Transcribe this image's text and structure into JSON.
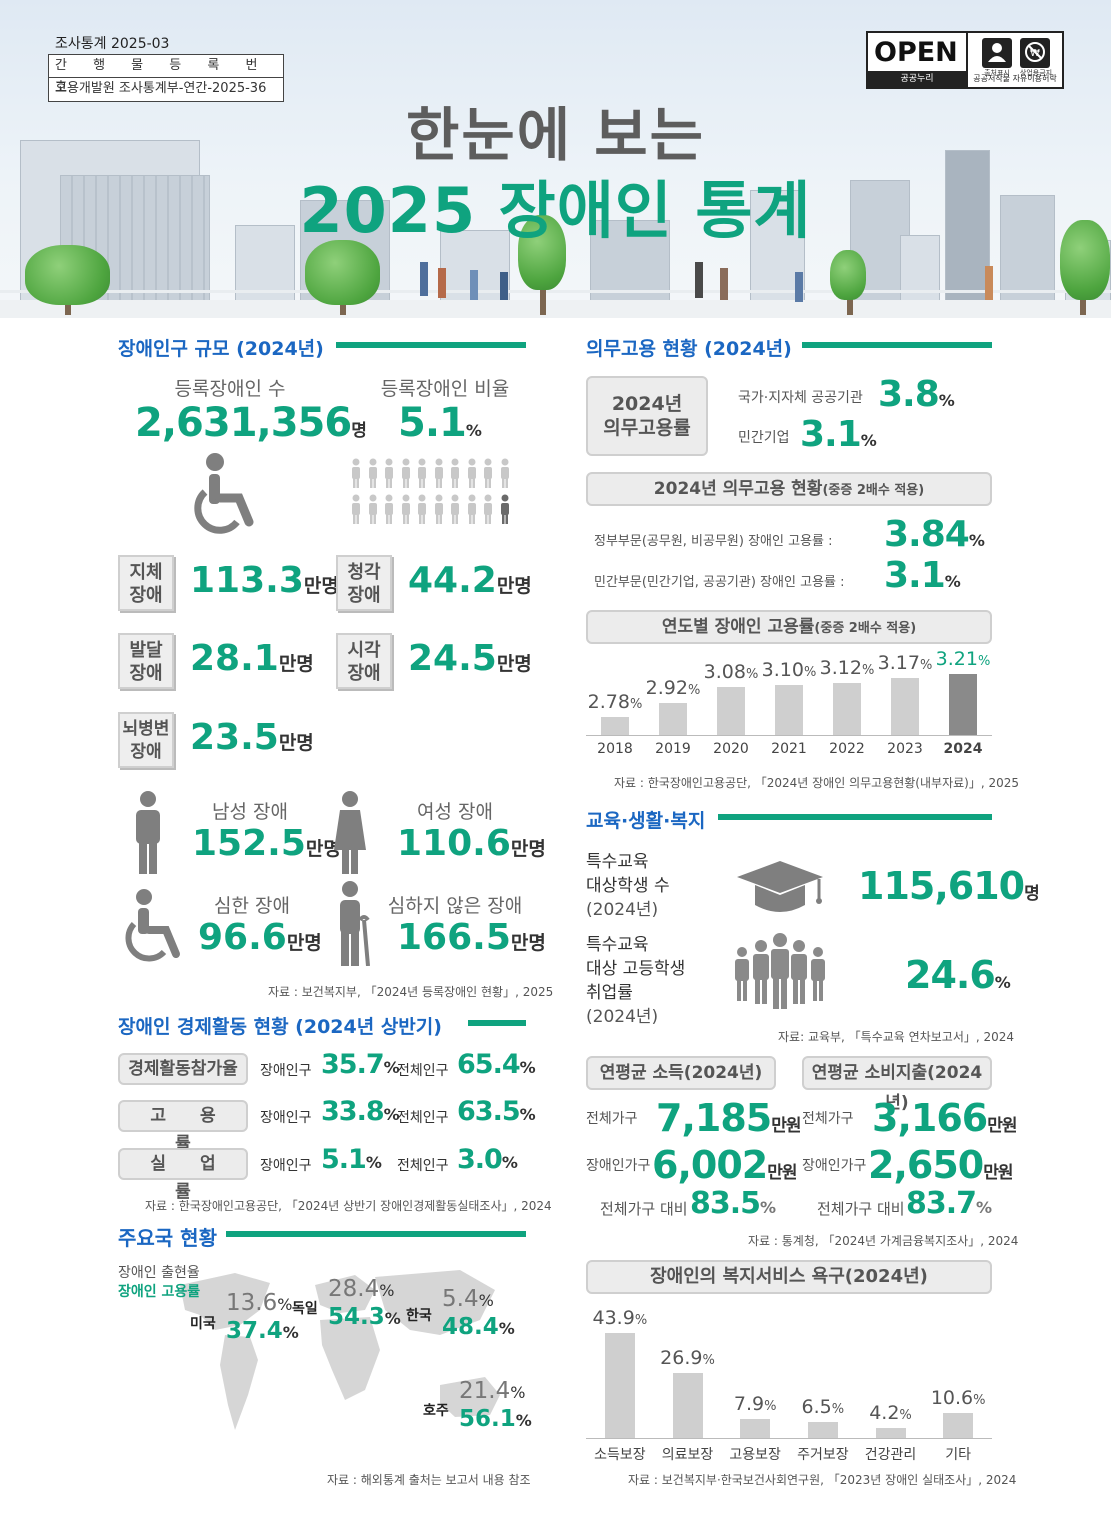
{
  "header": {
    "report_series": "조사통계 2025-03",
    "reg_label": "간 행 물 등 록 번 호",
    "reg_number": "고용개발원 조사통계부-연간-2025-36",
    "open_badge": {
      "word": "OPEN",
      "sub": "공공누리",
      "icon1": "출처표시",
      "icon2": "상업용금지",
      "icon_label": "공공저작물 자유이용허락"
    },
    "title_line1": "한눈에 보는",
    "title_line2": "2025 장애인 통계"
  },
  "population": {
    "title": "장애인구 규모 (2024년)",
    "registered_label": "등록장애인 수",
    "registered_value": "2,631,356",
    "registered_unit": "명",
    "ratio_label": "등록장애인 비율",
    "ratio_value": "5.1",
    "ratio_unit": "%",
    "categories": [
      {
        "name_line1": "지체",
        "name_line2": "장애",
        "value": "113.3",
        "unit": "만명"
      },
      {
        "name_line1": "청각",
        "name_line2": "장애",
        "value": "44.2",
        "unit": "만명"
      },
      {
        "name_line1": "발달",
        "name_line2": "장애",
        "value": "28.1",
        "unit": "만명"
      },
      {
        "name_line1": "시각",
        "name_line2": "장애",
        "value": "24.5",
        "unit": "만명"
      },
      {
        "name_line1": "뇌병변",
        "name_line2": "장애",
        "value": "23.5",
        "unit": "만명"
      }
    ],
    "male_label": "남성 장애",
    "male_value": "152.5",
    "male_unit": "만명",
    "female_label": "여성 장애",
    "female_value": "110.6",
    "female_unit": "만명",
    "severe_label": "심한 장애",
    "severe_value": "96.6",
    "severe_unit": "만명",
    "mild_label": "심하지 않은 장애",
    "mild_value": "166.5",
    "mild_unit": "만명",
    "source": "자료 : 보건복지부, 「2024년 등록장애인 현황」, 2025"
  },
  "economic": {
    "title": "장애인 경제활동 현황 (2024년 상반기)",
    "rows": [
      {
        "label": "경제활동참가율",
        "disabled_label": "장애인구",
        "disabled_value": "35.7",
        "total_label": "전체인구",
        "total_value": "65.4",
        "unit": "%"
      },
      {
        "label": "고 용 률",
        "disabled_label": "장애인구",
        "disabled_value": "33.8",
        "total_label": "전체인구",
        "total_value": "63.5",
        "unit": "%"
      },
      {
        "label": "실 업 률",
        "disabled_label": "장애인구",
        "disabled_value": "5.1",
        "total_label": "전체인구",
        "total_value": "3.0",
        "unit": "%"
      }
    ],
    "source": "자료 : 한국장애인고용공단, 「2024년 상반기 장애인경제활동실태조사」, 2024"
  },
  "countries": {
    "title": "주요국 현황",
    "legend_prevalence": "장애인 출현율",
    "legend_employment": "장애인 고용률",
    "items": [
      {
        "name": "미국",
        "prevalence": "13.6",
        "employment": "37.4"
      },
      {
        "name": "독일",
        "prevalence": "28.4",
        "employment": "54.3"
      },
      {
        "name": "한국",
        "prevalence": "5.4",
        "employment": "48.4"
      },
      {
        "name": "호주",
        "prevalence": "21.4",
        "employment": "56.1"
      }
    ],
    "unit": "%",
    "source": "자료 : 해외통계 출처는 보고서 내용 참조"
  },
  "mandatory": {
    "title": "의무고용 현황 (2024년)",
    "box_line1": "2024년",
    "box_line2": "의무고용률",
    "public_label": "국가·지자체 공공기관",
    "public_value": "3.8",
    "private_label": "민간기업",
    "private_value": "3.1",
    "unit": "%",
    "status_title": "2024년 의무고용 현황",
    "status_title_note": "(중증 2배수 적용)",
    "gov_label": "정부부문(공무원, 비공무원) 장애인 고용률 :",
    "gov_value": "3.84",
    "priv_label": "민간부문(민간기업, 공공기관) 장애인 고용률 :",
    "priv_value": "3.1",
    "trend_title": "연도별 장애인 고용률",
    "trend_title_note": "(중증 2배수 적용)",
    "source": "자료 : 한국장애인고용공단, 「2024년 장애인 의무고용현황(내부자료)」, 2025"
  },
  "education": {
    "title": "교육·생활·복지",
    "students_label_line1": "특수교육",
    "students_label_line2": "대상학생 수",
    "students_label_line3": "(2024년)",
    "students_value": "115,610",
    "students_unit": "명",
    "employ_label_line1": "특수교육",
    "employ_label_line2": "대상 고등학생",
    "employ_label_line3": "취업률",
    "employ_label_line4": "(2024년)",
    "employ_value": "24.6",
    "employ_unit": "%",
    "source": "자료: 교육부, 「특수교육 연차보고서」, 2024"
  },
  "income": {
    "income_title": "연평균 소득(2024년)",
    "spend_title": "연평균 소비지출(2024년)",
    "all_label": "전체가구",
    "disabled_label": "장애인가구",
    "income_all": "7,185",
    "income_disabled": "6,002",
    "spend_all": "3,166",
    "spend_disabled": "2,650",
    "unit": "만원",
    "ratio_label": "전체가구 대비",
    "income_ratio": "83.5",
    "spend_ratio": "83.7",
    "ratio_unit": "%",
    "source": "자료 : 통계청, 「2024년 가계금융복지조사」, 2024"
  },
  "welfare": {
    "title": "장애인의 복지서비스 욕구(2024년)",
    "source": "자료 : 보건복지부·한국보건사회연구원, 「2023년 장애인 실태조사」, 2024"
  },
  "chart_data": [
    {
      "type": "bar",
      "title": "연도별 장애인 고용률 (중증 2배수 적용)",
      "categories": [
        "2018",
        "2019",
        "2020",
        "2021",
        "2022",
        "2023",
        "2024"
      ],
      "values": [
        2.78,
        2.92,
        3.08,
        3.1,
        3.12,
        3.17,
        3.21
      ],
      "labels": [
        "2.78",
        "2.92",
        "3.08",
        "3.10",
        "3.12",
        "3.17",
        "3.21"
      ],
      "unit": "%",
      "highlight_color": "#8a8a8a",
      "bar_color": "#cfcfcf"
    },
    {
      "type": "bar",
      "title": "장애인의 복지서비스 욕구(2024년)",
      "categories": [
        "소득보장",
        "의료보장",
        "고용보장",
        "주거보장",
        "건강관리",
        "기타"
      ],
      "values": [
        43.9,
        26.9,
        7.9,
        6.5,
        4.2,
        10.6
      ],
      "labels": [
        "43.9",
        "26.9",
        "7.9",
        "6.5",
        "4.2",
        "10.6"
      ],
      "unit": "%",
      "bar_color": "#cfcfcf"
    }
  ],
  "colors": {
    "accent": "#0fa37f",
    "heading": "#1b67c2",
    "gray": "#777777"
  }
}
